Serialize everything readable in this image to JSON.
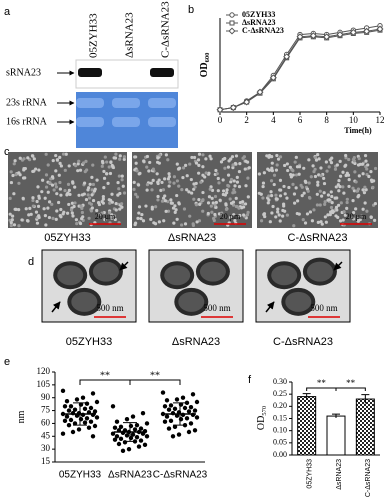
{
  "panel_labels": [
    "a",
    "b",
    "c",
    "d",
    "e",
    "f"
  ],
  "blot": {
    "lanes": [
      "05ZYH33",
      "ΔsRNA23",
      "C-ΔsRNA23"
    ],
    "rows": [
      "sRNA23",
      "23s rRNA",
      "16s rRNA"
    ]
  },
  "sem": {
    "captions": [
      "05ZYH33",
      "ΔsRNA23",
      "C-ΔsRNA23"
    ],
    "scale_bar": "20 μm"
  },
  "tem": {
    "captions": [
      "05ZYH33",
      "ΔsRNA23",
      "C-ΔsRNA23"
    ],
    "scale_bar": "500 nm"
  },
  "chart_data": [
    {
      "type": "line",
      "xlabel": "Time(h)",
      "ylabel": "OD",
      "ylabel_sub": "600",
      "x": [
        0,
        1,
        2,
        3,
        4,
        5,
        6,
        7,
        8,
        9,
        10,
        11,
        12
      ],
      "xlim": [
        0,
        12
      ],
      "xticks": [
        0,
        2,
        4,
        6,
        8,
        10,
        12
      ],
      "ylim": [
        0,
        0.85
      ],
      "legend": "upper left",
      "series": [
        {
          "name": "05ZYH33",
          "color": "#555555",
          "marker": "circle",
          "values": [
            0.02,
            0.04,
            0.1,
            0.18,
            0.33,
            0.52,
            0.7,
            0.71,
            0.7,
            0.72,
            0.74,
            0.76,
            0.78
          ]
        },
        {
          "name": "ΔsRNA23",
          "color": "#555555",
          "marker": "square",
          "values": [
            0.02,
            0.04,
            0.09,
            0.17,
            0.3,
            0.49,
            0.67,
            0.68,
            0.67,
            0.69,
            0.71,
            0.72,
            0.74
          ]
        },
        {
          "name": "C-ΔsRNA23",
          "color": "#555555",
          "marker": "diamond",
          "values": [
            0.02,
            0.04,
            0.09,
            0.18,
            0.31,
            0.5,
            0.68,
            0.69,
            0.68,
            0.7,
            0.72,
            0.73,
            0.75
          ]
        }
      ]
    },
    {
      "type": "dot",
      "ylabel": "nm",
      "categories": [
        "05ZYH33",
        "ΔsRNA23",
        "C-ΔsRNA23"
      ],
      "ylim": [
        15,
        120
      ],
      "yticks": [
        15,
        30,
        45,
        60,
        75,
        90,
        105,
        120
      ],
      "color": "#000000",
      "values": [
        [
          98,
          95,
          90,
          88,
          86,
          85,
          83,
          82,
          80,
          80,
          78,
          77,
          76,
          75,
          74,
          73,
          72,
          72,
          71,
          70,
          70,
          69,
          68,
          67,
          66,
          65,
          64,
          63,
          62,
          61,
          60,
          58,
          57,
          55,
          53,
          50,
          48,
          45
        ],
        [
          80,
          72,
          68,
          65,
          62,
          60,
          58,
          57,
          56,
          55,
          54,
          53,
          52,
          52,
          51,
          50,
          50,
          49,
          48,
          48,
          47,
          46,
          45,
          45,
          44,
          43,
          42,
          41,
          40,
          39,
          38,
          36,
          35,
          33,
          30,
          28
        ],
        [
          96,
          94,
          90,
          88,
          87,
          85,
          84,
          82,
          81,
          80,
          79,
          78,
          77,
          76,
          75,
          74,
          73,
          72,
          71,
          70,
          70,
          69,
          68,
          67,
          66,
          65,
          63,
          62,
          60,
          58,
          56,
          54,
          52,
          50,
          47,
          45
        ]
      ],
      "means": [
        71,
        50,
        71
      ],
      "sd": [
        13,
        11,
        13
      ],
      "significance": [
        "**",
        "**"
      ]
    },
    {
      "type": "bar",
      "ylabel": "OD",
      "ylabel_sub": "570",
      "categories": [
        "05ZYH33",
        "ΔsRNA23",
        "C-ΔsRNA23"
      ],
      "values": [
        0.24,
        0.16,
        0.23
      ],
      "errors": [
        0.012,
        0.008,
        0.018
      ],
      "fills": [
        "checker",
        "white",
        "checker"
      ],
      "ylim": [
        0,
        0.3
      ],
      "yticks": [
        {
          "value": 0,
          "label": "0.00"
        },
        {
          "value": 0.05,
          "label": "0.05"
        },
        {
          "value": 0.1,
          "label": "0.10"
        },
        {
          "value": 0.15,
          "label": "0.15"
        },
        {
          "value": 0.2,
          "label": "0.20"
        },
        {
          "value": 0.25,
          "label": "0.25"
        },
        {
          "value": 0.3,
          "label": "0.30"
        }
      ],
      "significance": [
        "**",
        "**"
      ]
    }
  ]
}
